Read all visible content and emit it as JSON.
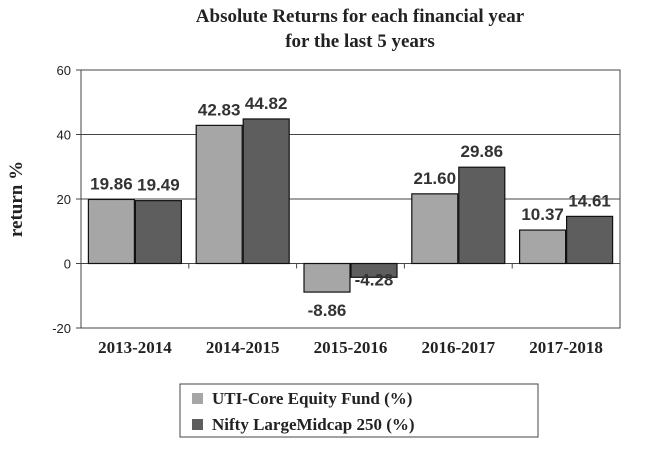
{
  "chart_data": {
    "type": "bar",
    "title": [
      "Absolute Returns for each financial year",
      "for the last 5 years"
    ],
    "ylabel": "return %",
    "ylim": [
      -20,
      60
    ],
    "yticks": [
      -20,
      0,
      20,
      40,
      60
    ],
    "grid": true,
    "legend_position": "bottom",
    "categories": [
      "2013-2014",
      "2014-2015",
      "2015-2016",
      "2016-2017",
      "2017-2018"
    ],
    "series": [
      {
        "name": "UTI-Core Equity Fund (%)",
        "values": [
          19.86,
          42.83,
          -8.86,
          21.6,
          10.37
        ],
        "labels": [
          "19.86",
          "42.83",
          "-8.86",
          "21.60",
          "10.37"
        ],
        "color": "#a6a6a6"
      },
      {
        "name": "Nifty LargeMidcap 250 (%)",
        "values": [
          19.49,
          44.82,
          -4.28,
          29.86,
          14.61
        ],
        "labels": [
          "19.49",
          "44.82",
          "-4.28",
          "29.86",
          "14.61"
        ],
        "color": "#5e5e5e"
      }
    ]
  }
}
